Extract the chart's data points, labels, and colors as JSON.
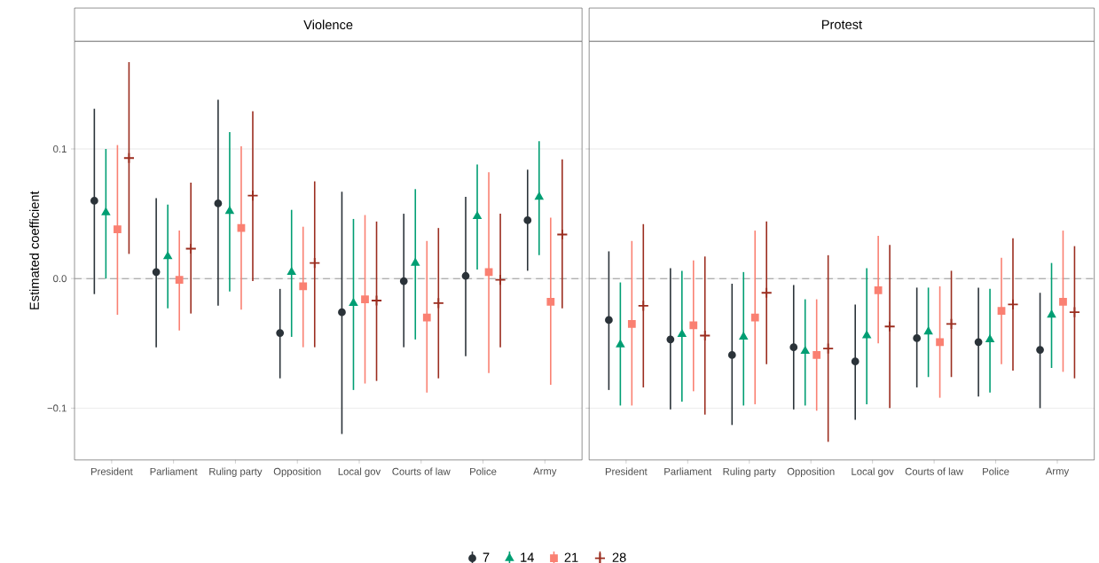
{
  "chart_data": [
    {
      "type": "scatter",
      "title": "Violence",
      "ylabel": "Estimated coefficient",
      "categories": [
        "President",
        "Parliament",
        "Ruling party",
        "Opposition",
        "Local gov",
        "Courts of law",
        "Police",
        "Army"
      ],
      "ylim": [
        -0.14,
        0.183
      ],
      "yticks": [
        {
          "value": -0.1,
          "label": "−0.1"
        },
        {
          "value": 0,
          "label": "0.0"
        },
        {
          "value": 0.1,
          "label": "0.1"
        }
      ],
      "grid": "y",
      "legend": "bottom",
      "ref_lines": [
        {
          "axis": "y",
          "value": 0,
          "color": "#999999",
          "line_style": "dashed"
        }
      ],
      "series": [
        {
          "name": "7",
          "color": "#2b3339",
          "marker": "circle",
          "values": [
            0.06,
            0.005,
            0.058,
            -0.042,
            -0.026,
            -0.002,
            0.002,
            0.045
          ],
          "errors": [
            [
              -0.012,
              0.131
            ],
            [
              -0.053,
              0.062
            ],
            [
              -0.021,
              0.138
            ],
            [
              -0.077,
              -0.008
            ],
            [
              -0.12,
              0.067
            ],
            [
              -0.053,
              0.05
            ],
            [
              -0.06,
              0.063
            ],
            [
              0.006,
              0.084
            ]
          ]
        },
        {
          "name": "14",
          "color": "#009e73",
          "marker": "triangle",
          "values": [
            0.051,
            0.017,
            0.052,
            0.005,
            -0.019,
            0.012,
            0.048,
            0.063
          ],
          "errors": [
            [
              0.0,
              0.1
            ],
            [
              -0.023,
              0.057
            ],
            [
              -0.01,
              0.113
            ],
            [
              -0.045,
              0.053
            ],
            [
              -0.086,
              0.046
            ],
            [
              -0.047,
              0.069
            ],
            [
              0.007,
              0.088
            ],
            [
              0.018,
              0.106
            ]
          ]
        },
        {
          "name": "21",
          "color": "#fa8072",
          "marker": "square",
          "values": [
            0.038,
            -0.001,
            0.039,
            -0.006,
            -0.016,
            -0.03,
            0.005,
            -0.018
          ],
          "errors": [
            [
              -0.028,
              0.103
            ],
            [
              -0.04,
              0.037
            ],
            [
              -0.024,
              0.102
            ],
            [
              -0.053,
              0.04
            ],
            [
              -0.081,
              0.049
            ],
            [
              -0.088,
              0.029
            ],
            [
              -0.073,
              0.082
            ],
            [
              -0.082,
              0.047
            ]
          ]
        },
        {
          "name": "28",
          "color": "#9b2d1f",
          "marker": "cross",
          "values": [
            0.093,
            0.023,
            0.064,
            0.012,
            -0.017,
            -0.019,
            -0.001,
            0.034
          ],
          "errors": [
            [
              0.019,
              0.167
            ],
            [
              -0.027,
              0.074
            ],
            [
              -0.002,
              0.129
            ],
            [
              -0.053,
              0.075
            ],
            [
              -0.079,
              0.044
            ],
            [
              -0.077,
              0.039
            ],
            [
              -0.053,
              0.05
            ],
            [
              -0.023,
              0.092
            ]
          ]
        }
      ]
    },
    {
      "type": "scatter",
      "title": "Protest",
      "categories": [
        "President",
        "Parliament",
        "Ruling party",
        "Opposition",
        "Local gov",
        "Courts of law",
        "Police",
        "Army"
      ],
      "ylim": [
        -0.14,
        0.183
      ],
      "yticks": [
        -0.1,
        0,
        0.1
      ],
      "tick_labels": "x",
      "grid": "y",
      "ref_lines": [
        {
          "axis": "y",
          "value": 0,
          "color": "#999999",
          "line_style": "dashed"
        }
      ],
      "series": [
        {
          "color": "#2b3339",
          "marker": "circle",
          "values": [
            -0.032,
            -0.047,
            -0.059,
            -0.053,
            -0.064,
            -0.046,
            -0.049,
            -0.055
          ],
          "errors": [
            [
              -0.086,
              0.021
            ],
            [
              -0.101,
              0.008
            ],
            [
              -0.113,
              -0.004
            ],
            [
              -0.101,
              -0.005
            ],
            [
              -0.109,
              -0.02
            ],
            [
              -0.084,
              -0.007
            ],
            [
              -0.091,
              -0.007
            ],
            [
              -0.1,
              -0.011
            ]
          ]
        },
        {
          "color": "#009e73",
          "marker": "triangle",
          "values": [
            -0.051,
            -0.043,
            -0.045,
            -0.056,
            -0.044,
            -0.041,
            -0.047,
            -0.028
          ],
          "errors": [
            [
              -0.098,
              -0.003
            ],
            [
              -0.095,
              0.006
            ],
            [
              -0.098,
              0.005
            ],
            [
              -0.098,
              -0.016
            ],
            [
              -0.097,
              0.008
            ],
            [
              -0.076,
              -0.007
            ],
            [
              -0.088,
              -0.008
            ],
            [
              -0.069,
              0.012
            ]
          ]
        },
        {
          "color": "#fa8072",
          "marker": "square",
          "values": [
            -0.035,
            -0.036,
            -0.03,
            -0.059,
            -0.009,
            -0.049,
            -0.025,
            -0.018
          ],
          "errors": [
            [
              -0.098,
              0.029
            ],
            [
              -0.087,
              0.014
            ],
            [
              -0.097,
              0.037
            ],
            [
              -0.102,
              -0.016
            ],
            [
              -0.05,
              0.033
            ],
            [
              -0.092,
              -0.006
            ],
            [
              -0.066,
              0.016
            ],
            [
              -0.072,
              0.037
            ]
          ]
        },
        {
          "color": "#9b2d1f",
          "marker": "cross",
          "values": [
            -0.021,
            -0.044,
            -0.011,
            -0.054,
            -0.037,
            -0.035,
            -0.02,
            -0.026
          ],
          "errors": [
            [
              -0.084,
              0.042
            ],
            [
              -0.105,
              0.017
            ],
            [
              -0.066,
              0.044
            ],
            [
              -0.126,
              0.018
            ],
            [
              -0.1,
              0.026
            ],
            [
              -0.076,
              0.006
            ],
            [
              -0.071,
              0.031
            ],
            [
              -0.077,
              0.025
            ]
          ]
        }
      ]
    }
  ]
}
